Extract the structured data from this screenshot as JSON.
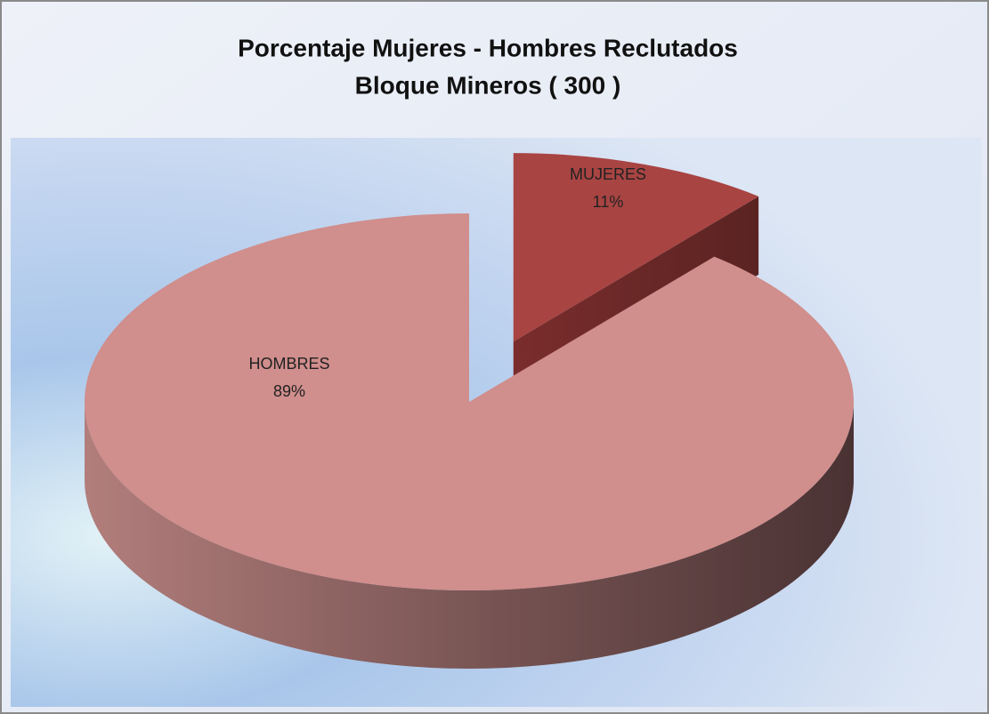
{
  "chart_data": {
    "type": "pie3d",
    "title": [
      "Porcentaje Mujeres - Hombres  Reclutados",
      "Bloque Mineros  ( 300 )"
    ],
    "categories": [
      "MUJERES",
      "HOMBRES"
    ],
    "values": [
      11,
      89
    ],
    "value_labels": [
      "11%",
      "89%"
    ],
    "colors": [
      "#a84442",
      "#d08e8c"
    ]
  }
}
